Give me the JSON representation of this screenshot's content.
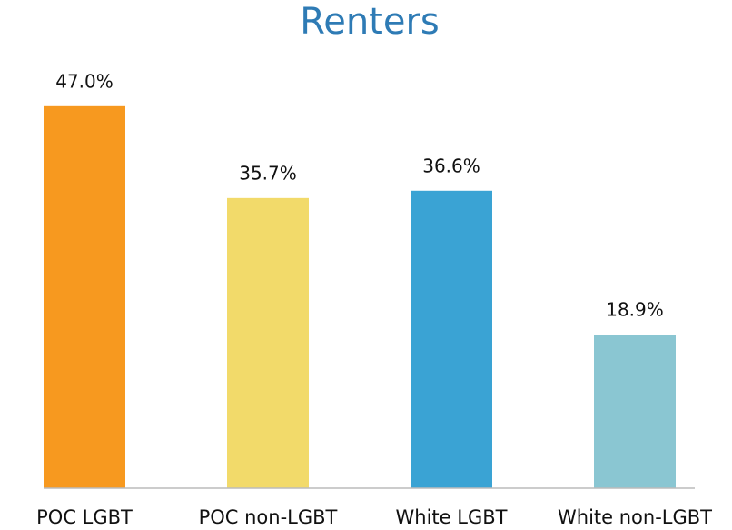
{
  "chart_data": {
    "type": "bar",
    "title": "Renters",
    "categories": [
      "POC LGBT",
      "POC non-LGBT",
      "White LGBT",
      "White non-LGBT"
    ],
    "values": [
      47.0,
      35.7,
      36.6,
      18.9
    ],
    "value_labels": [
      "47.0%",
      "35.7%",
      "36.6%",
      "18.9%"
    ],
    "colors": [
      "#f7991f",
      "#f2da6a",
      "#3aa3d4",
      "#8ac6d2"
    ],
    "ylim": [
      0,
      50
    ]
  }
}
